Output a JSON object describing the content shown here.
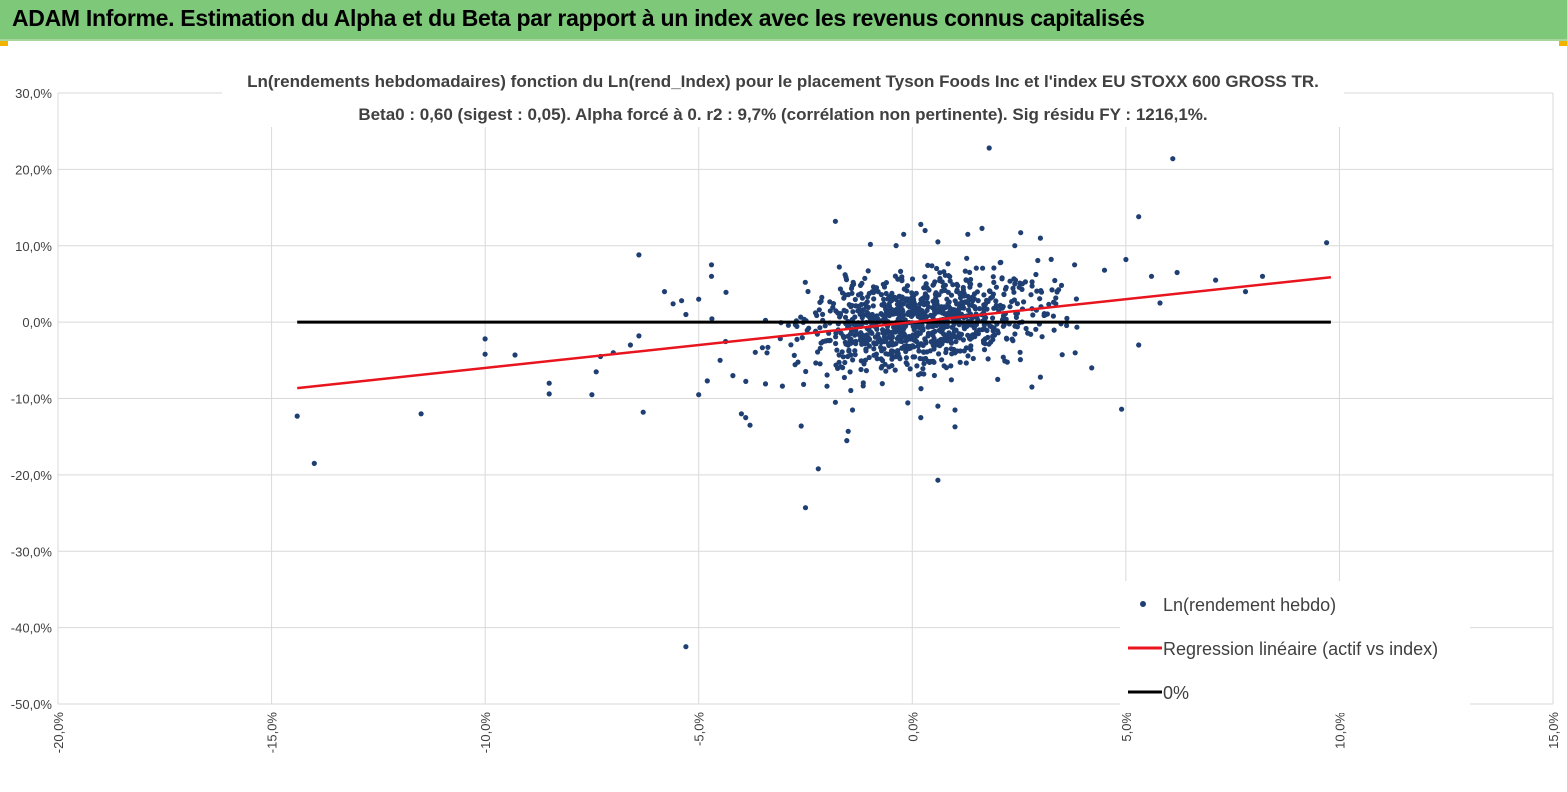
{
  "banner": {
    "title": "ADAM Informe. Estimation du Alpha et du Beta par rapport à un index avec les revenus connus capitalisés"
  },
  "colors": {
    "banner_bg": "#7ec87a",
    "points": "#1f3f73",
    "regression": "#e8141e",
    "zero_line": "#000000",
    "grid": "#d9d9d9"
  },
  "chart_data": {
    "type": "scatter",
    "title_line1": "Ln(rendements hebdomadaires) fonction du Ln(rend_Index) pour le placement Tyson Foods Inc et l'index EU STOXX 600 GROSS TR.",
    "title_line2": "Beta0 : 0,60 (sigest : 0,05). Alpha forcé à 0. r2 : 9,7% (corrélation non pertinente). Sig résidu FY : 1216,1%.",
    "xlim": [
      -0.2,
      0.15
    ],
    "ylim": [
      -0.5,
      0.3
    ],
    "x_ticks": [
      -0.2,
      -0.15,
      -0.1,
      -0.05,
      0.0,
      0.05,
      0.1,
      0.15
    ],
    "x_tick_labels": [
      "-20,0%",
      "-15,0%",
      "-10,0%",
      "-5,0%",
      "0,0%",
      "5,0%",
      "10,0%",
      "15,0%"
    ],
    "y_ticks": [
      0.3,
      0.2,
      0.1,
      0.0,
      -0.1,
      -0.2,
      -0.3,
      -0.4,
      -0.5
    ],
    "y_tick_labels": [
      "30,0%",
      "20,0%",
      "10,0%",
      "0,0%",
      "-10,0%",
      "-20,0%",
      "-30,0%",
      "-40,0%",
      "-50,0%"
    ],
    "grid": true,
    "legend_position": "bottom-right",
    "legend": {
      "points": "Ln(rendement hebdo)",
      "regression": "Regression linéaire (actif vs index)",
      "zero": "0%"
    },
    "regression_line": {
      "slope": 0.6,
      "intercept": 0.0,
      "x_from": -0.144,
      "x_to": 0.098
    },
    "zero_line": {
      "y": 0.0,
      "x_from": -0.144,
      "x_to": 0.098
    },
    "outliers": [
      [
        0.018,
        0.228
      ],
      [
        0.061,
        0.214
      ],
      [
        0.053,
        0.138
      ],
      [
        0.097,
        0.104
      ],
      [
        -0.018,
        0.132
      ],
      [
        -0.064,
        0.088
      ],
      [
        -0.144,
        -0.123
      ],
      [
        -0.14,
        -0.185
      ],
      [
        -0.115,
        -0.12
      ],
      [
        -0.053,
        -0.425
      ],
      [
        -0.025,
        -0.243
      ],
      [
        -0.022,
        -0.192
      ],
      [
        0.006,
        -0.207
      ],
      [
        -0.1,
        -0.042
      ],
      [
        -0.1,
        -0.022
      ],
      [
        -0.093,
        -0.043
      ],
      [
        -0.085,
        -0.08
      ],
      [
        -0.085,
        -0.094
      ],
      [
        -0.075,
        -0.095
      ],
      [
        -0.074,
        -0.065
      ],
      [
        -0.073,
        -0.045
      ],
      [
        -0.07,
        -0.04
      ],
      [
        -0.066,
        -0.03
      ],
      [
        -0.063,
        -0.118
      ],
      [
        -0.064,
        -0.018
      ],
      [
        -0.058,
        0.04
      ],
      [
        -0.056,
        0.024
      ],
      [
        -0.054,
        0.028
      ],
      [
        -0.053,
        0.01
      ],
      [
        -0.05,
        0.03
      ],
      [
        -0.05,
        -0.095
      ],
      [
        -0.048,
        -0.077
      ],
      [
        -0.047,
        0.075
      ],
      [
        -0.047,
        0.06
      ],
      [
        -0.045,
        -0.05
      ],
      [
        -0.042,
        -0.07
      ],
      [
        -0.04,
        -0.12
      ],
      [
        -0.039,
        -0.125
      ],
      [
        -0.038,
        -0.135
      ],
      [
        -0.026,
        -0.136
      ],
      [
        -0.018,
        -0.105
      ],
      [
        -0.015,
        -0.143
      ],
      [
        -0.014,
        -0.115
      ],
      [
        0.002,
        -0.125
      ],
      [
        0.006,
        -0.11
      ],
      [
        0.01,
        -0.137
      ],
      [
        0.01,
        -0.115
      ],
      [
        0.049,
        -0.114
      ],
      [
        0.053,
        -0.03
      ],
      [
        0.05,
        0.082
      ],
      [
        0.056,
        0.06
      ],
      [
        0.058,
        0.025
      ],
      [
        0.062,
        0.065
      ],
      [
        0.071,
        0.055
      ],
      [
        0.078,
        0.04
      ],
      [
        0.082,
        0.06
      ],
      [
        0.045,
        0.068
      ],
      [
        0.042,
        -0.06
      ],
      [
        0.03,
        0.11
      ],
      [
        0.024,
        0.1
      ],
      [
        0.002,
        0.128
      ],
      [
        0.003,
        0.12
      ],
      [
        0.006,
        0.105
      ],
      [
        0.013,
        0.115
      ],
      [
        -0.002,
        0.115
      ],
      [
        0.038,
        0.075
      ],
      [
        0.028,
        -0.085
      ],
      [
        0.03,
        -0.072
      ],
      [
        0.02,
        -0.075
      ]
    ],
    "cloud": {
      "count": 1020,
      "x_center": 0.002,
      "x_sd": 0.014,
      "y_sd": 0.031,
      "beta": 0.6,
      "seed": 7
    }
  }
}
